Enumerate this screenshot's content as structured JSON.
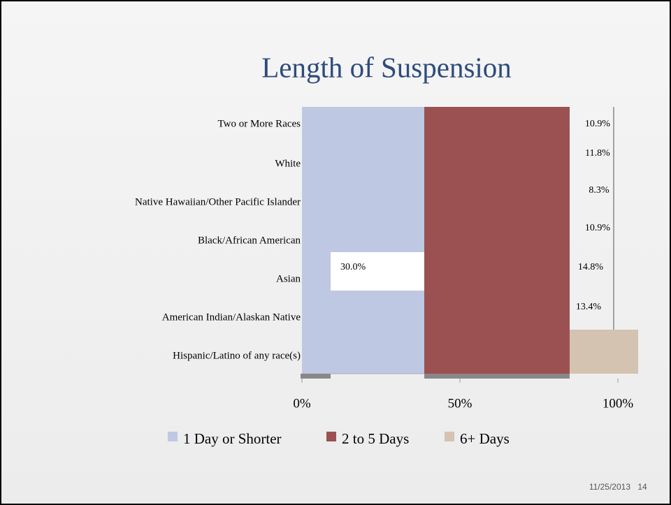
{
  "chart_data": {
    "type": "bar",
    "orientation": "horizontal",
    "title": "Length of Suspension",
    "categories": [
      "Two or More Races",
      "White",
      "Native Hawaiian/Other Pacific Islander",
      "Black/African  American",
      "Asian",
      "American Indian/Alaskan Native",
      "Hispanic/Latino of any race(s)"
    ],
    "series": [
      {
        "name": "1 Day or Shorter",
        "color": "#bfc8e2",
        "values": [
          null,
          null,
          null,
          null,
          30.0,
          null,
          null
        ],
        "value_labels": [
          null,
          null,
          null,
          null,
          "30.0%",
          null,
          null
        ]
      },
      {
        "name": "2 to 5 Days",
        "color": "#9b5151",
        "values": [
          null,
          null,
          null,
          null,
          null,
          null,
          null
        ]
      },
      {
        "name": "6+ Days",
        "color": "#d4c3b0",
        "values": [
          10.9,
          11.8,
          8.3,
          10.9,
          14.8,
          13.4,
          null
        ],
        "value_labels": [
          "10.9%",
          "11.8%",
          "8.3%",
          "10.9%",
          "14.8%",
          "13.4%",
          null
        ]
      }
    ],
    "xlim": [
      0,
      100
    ],
    "xticks": [
      {
        "value": 0,
        "label": "0%"
      },
      {
        "value": 50,
        "label": "50%"
      },
      {
        "value": 100,
        "label": "100%"
      }
    ],
    "date": "11/25/2013",
    "page_number": "14"
  }
}
